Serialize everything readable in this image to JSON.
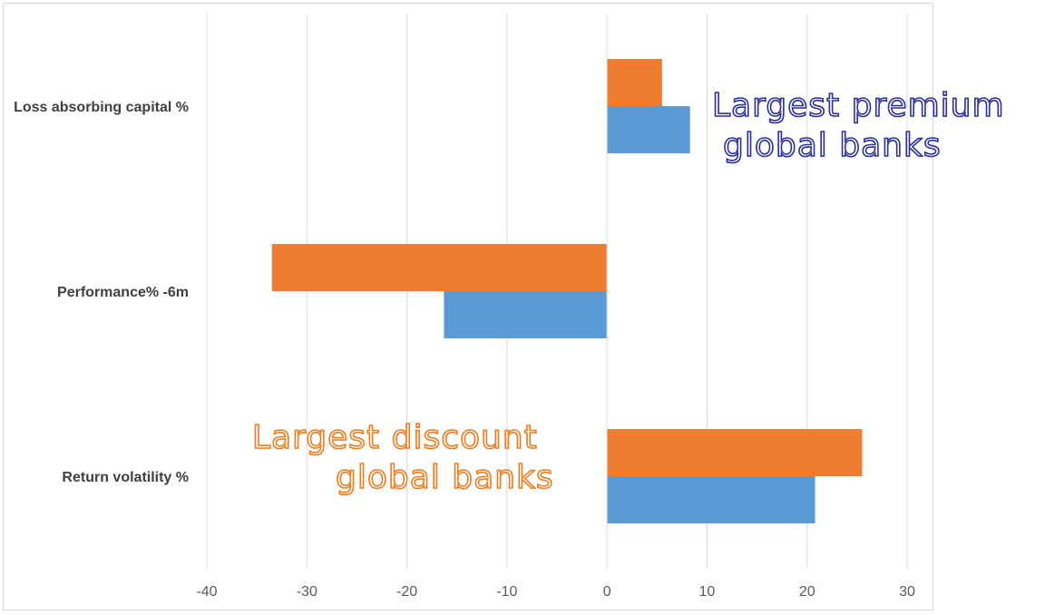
{
  "chart_data": {
    "type": "bar",
    "orientation": "horizontal",
    "categories": [
      "Loss absorbing capital %",
      "Performance% -6m",
      "Return volatility %"
    ],
    "series": [
      {
        "color": "#ed7d31",
        "values": [
          5.5,
          -33.5,
          25.5
        ]
      },
      {
        "color": "#5b9bd5",
        "values": [
          8.3,
          -16.3,
          20.8
        ]
      }
    ],
    "xlim": [
      -40,
      30
    ],
    "xticks": [
      "-40",
      "-30",
      "-20",
      "-10",
      "0",
      "10",
      "20",
      "30"
    ],
    "grid": true,
    "legend": "none",
    "annotations": [
      {
        "lines": [
          "Largest premium",
          "global banks"
        ],
        "color": "#2b2f9a",
        "near": "top-right"
      },
      {
        "lines": [
          "Largest discount",
          "global banks"
        ],
        "color": "#f07c1e",
        "near": "bottom-left"
      }
    ]
  }
}
